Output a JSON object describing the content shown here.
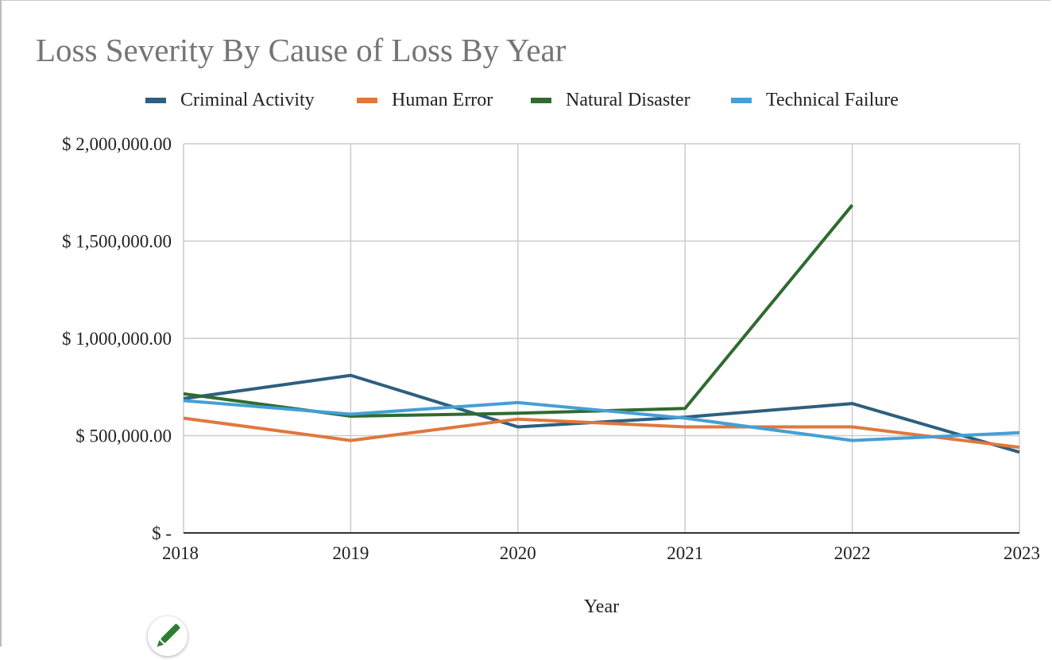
{
  "chart_data": {
    "type": "line",
    "title": "Loss Severity By Cause of Loss By Year",
    "xlabel": "Year",
    "ylabel": "",
    "categories": [
      "2018",
      "2019",
      "2020",
      "2021",
      "2022",
      "2023"
    ],
    "ylim": [
      0,
      2000000
    ],
    "yticks": [
      0,
      500000,
      1000000,
      1500000,
      2000000
    ],
    "ytick_labels": [
      "$ -",
      "$ 500,000.00",
      "$ 1,000,000.00",
      "$ 1,500,000.00",
      "$ 2,000,000.00"
    ],
    "grid": true,
    "legend_position": "top",
    "series": [
      {
        "name": "Criminal Activity",
        "color": "#2e5f7f",
        "values": [
          690000,
          810000,
          545000,
          595000,
          665000,
          415000
        ]
      },
      {
        "name": "Human Error",
        "color": "#e0773e",
        "values": [
          590000,
          475000,
          585000,
          545000,
          545000,
          440000
        ]
      },
      {
        "name": "Natural Disaster",
        "color": "#2f6b2f",
        "values": [
          715000,
          600000,
          615000,
          640000,
          1685000,
          null
        ]
      },
      {
        "name": "Technical Failure",
        "color": "#459fd6",
        "values": [
          680000,
          610000,
          670000,
          590000,
          475000,
          515000
        ]
      }
    ]
  },
  "edit_button": {
    "icon": "pencil-icon",
    "color": "#2e7d32"
  }
}
